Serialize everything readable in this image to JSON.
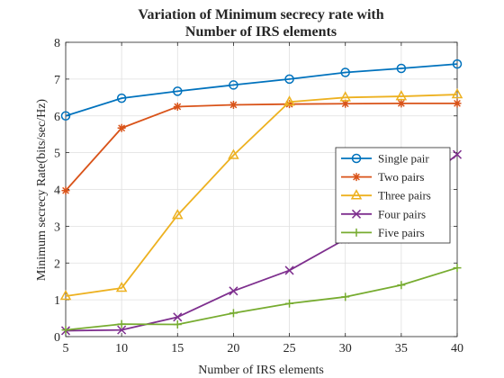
{
  "chart_data": {
    "type": "line",
    "title_lines": [
      "Variation of Minimum secrecy rate with",
      "Number of IRS elements"
    ],
    "xlabel": "Number of IRS elements",
    "ylabel": "Minimum secrecy Rate(bits/sec/Hz)",
    "xlim": [
      5,
      40
    ],
    "ylim": [
      0,
      8
    ],
    "xticks": [
      5,
      10,
      15,
      20,
      25,
      30,
      35,
      40
    ],
    "yticks": [
      0,
      1,
      2,
      3,
      4,
      5,
      6,
      7,
      8
    ],
    "grid": true,
    "legend_position": "right",
    "x": [
      5,
      10,
      15,
      20,
      25,
      30,
      35,
      40
    ],
    "series": [
      {
        "name": "Single pair",
        "color": "#0072BD",
        "marker": "circle",
        "values": [
          6.0,
          6.48,
          6.67,
          6.84,
          7.0,
          7.18,
          7.29,
          7.41
        ]
      },
      {
        "name": "Two pairs",
        "color": "#D95319",
        "marker": "asterisk",
        "values": [
          3.97,
          5.67,
          6.25,
          6.3,
          6.32,
          6.33,
          6.34,
          6.34
        ]
      },
      {
        "name": "Three pairs",
        "color": "#EDB120",
        "marker": "triangle",
        "values": [
          1.1,
          1.32,
          3.3,
          4.93,
          6.38,
          6.5,
          6.53,
          6.58
        ]
      },
      {
        "name": "Four pairs",
        "color": "#7E2F8E",
        "marker": "x",
        "values": [
          0.16,
          0.18,
          0.53,
          1.24,
          1.8,
          2.65,
          3.75,
          4.95
        ]
      },
      {
        "name": "Five pairs",
        "color": "#77AC30",
        "marker": "plus",
        "values": [
          0.18,
          0.34,
          0.33,
          0.64,
          0.9,
          1.08,
          1.4,
          1.87
        ]
      }
    ]
  }
}
